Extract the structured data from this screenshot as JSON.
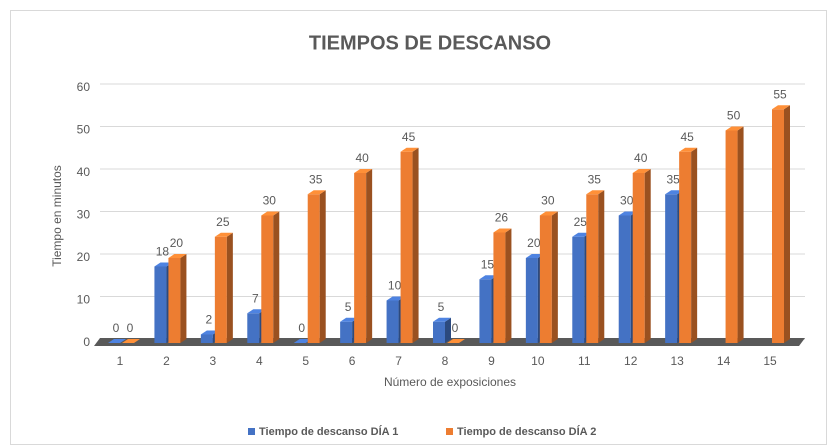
{
  "chart_data": {
    "type": "bar3d",
    "title": "TIEMPOS DE DESCANSO",
    "x_label": "Número de exposiciones",
    "y_label": "Tiempo en minutos",
    "categories": [
      "1",
      "2",
      "3",
      "4",
      "5",
      "6",
      "7",
      "8",
      "9",
      "10",
      "11",
      "12",
      "13",
      "14",
      "15"
    ],
    "series": [
      {
        "name": "Tiempo de descanso DÍA 1",
        "color": "#4472c4",
        "values": [
          0,
          18,
          2,
          7,
          0,
          5,
          10,
          5,
          15,
          20,
          25,
          30,
          35,
          null,
          null
        ]
      },
      {
        "name": "Tiempo de descanso DÍA 2",
        "color": "#ed7d31",
        "values": [
          0,
          20,
          25,
          30,
          35,
          40,
          45,
          0,
          26,
          30,
          35,
          40,
          45,
          50,
          55
        ]
      }
    ],
    "ylim": [
      0,
      60
    ],
    "yticks": [
      0,
      10,
      20,
      30,
      40,
      50,
      60
    ],
    "grid": true,
    "legend": "bottom"
  }
}
